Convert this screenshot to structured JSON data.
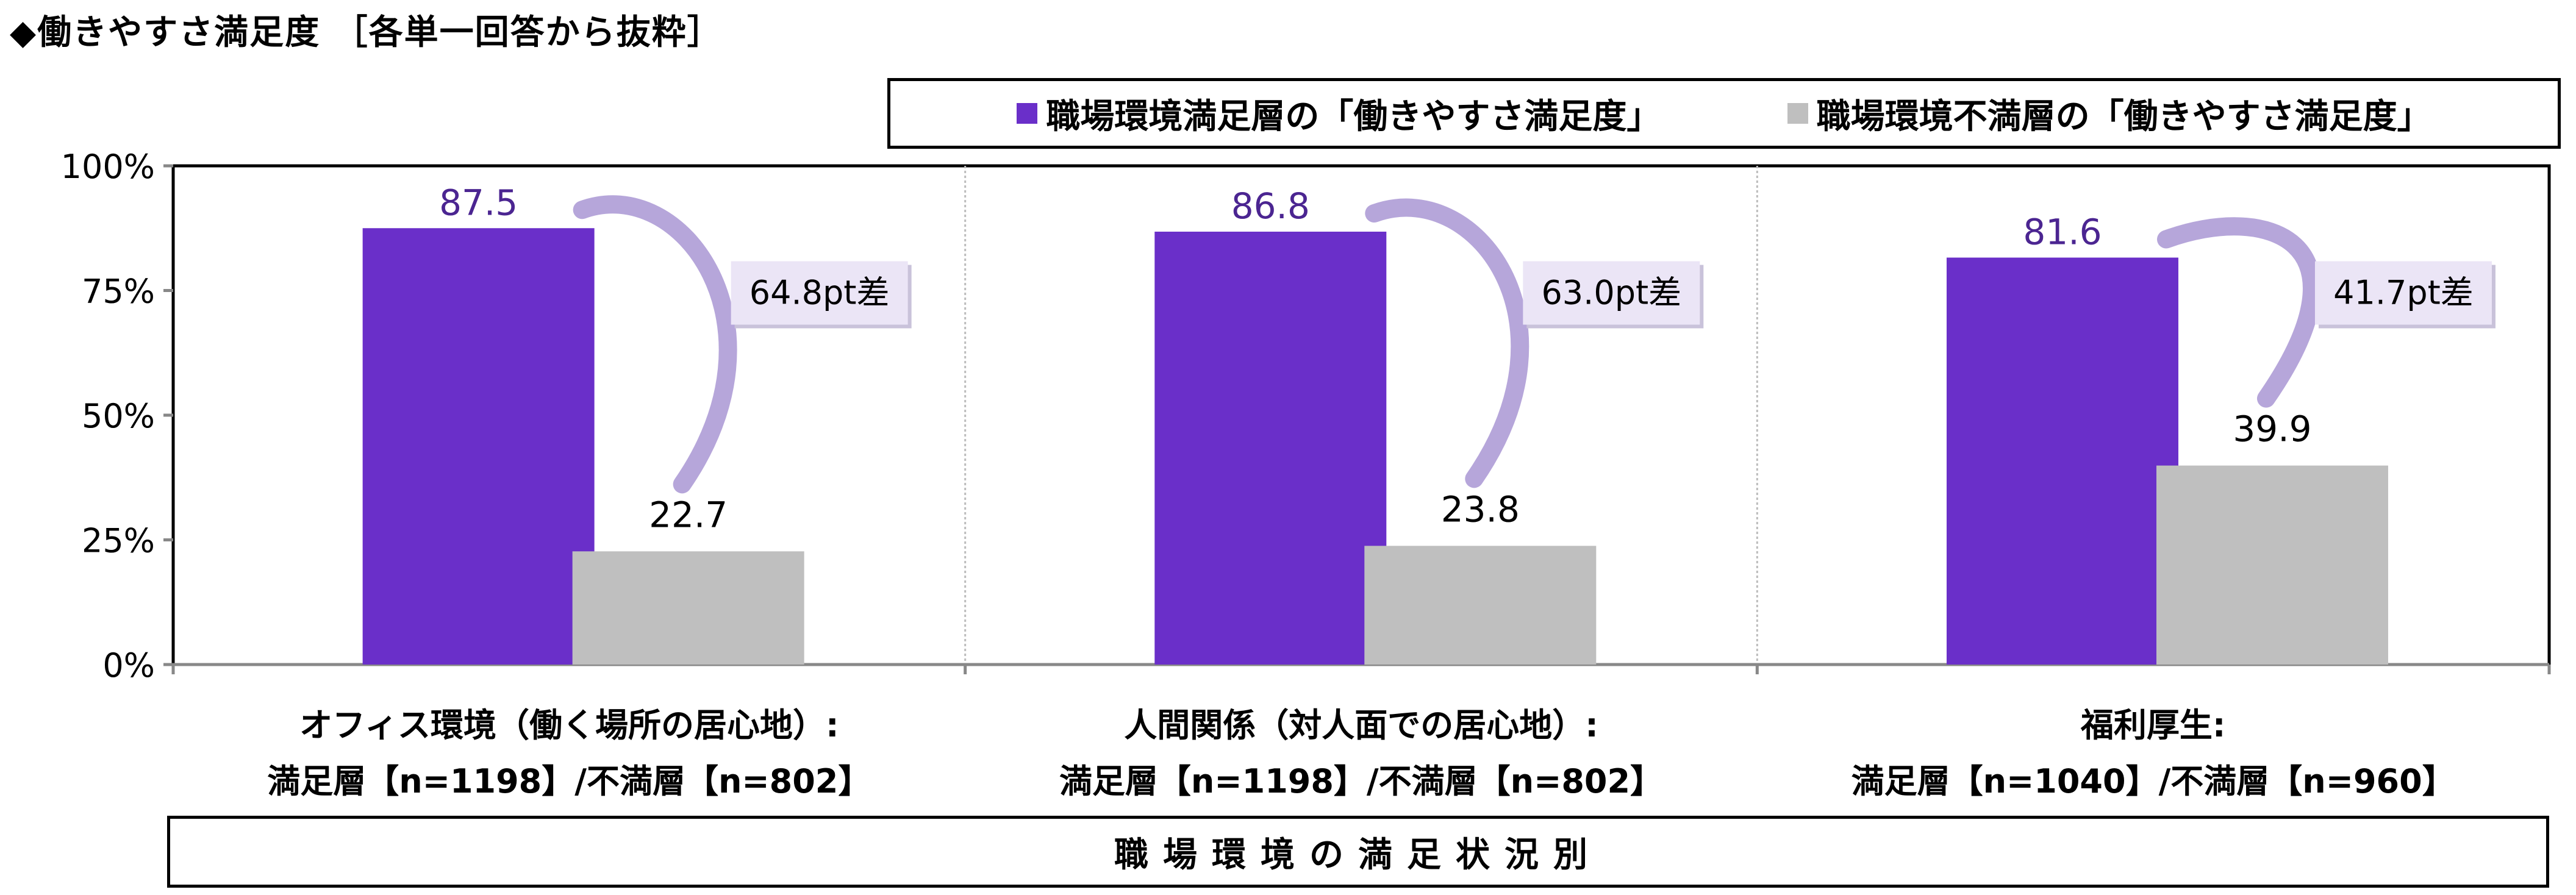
{
  "title": "◆働きやすさ満足度 ［各単一回答から抜粋］",
  "xaxis_title": "職場環境の満足状況別",
  "colors": {
    "satisfied": "#6a2fc9",
    "dissatisfied": "#bfbfbf",
    "arrow": "#b6a6da",
    "diff_box": "#ebe5f6",
    "value_purple": "#4b2591"
  },
  "chart_data": {
    "type": "bar",
    "categories": [
      [
        "オフィス環境（働く場所の居心地）:",
        "満足層【n=1198】/不満層【n=802】"
      ],
      [
        "人間関係（対人面での居心地）:",
        "満足層【n=1198】/不満層【n=802】"
      ],
      [
        "福利厚生:",
        "満足層【n=1040】/不満層【n=960】"
      ]
    ],
    "series": [
      {
        "name": "職場環境満足層の「働きやすさ満足度」",
        "values": [
          87.5,
          86.8,
          81.6
        ]
      },
      {
        "name": "職場環境不満層の「働きやすさ満足度」",
        "values": [
          22.7,
          23.8,
          39.9
        ]
      }
    ],
    "value_labels": [
      [
        "87.5",
        "86.8",
        "81.6"
      ],
      [
        "22.7",
        "23.8",
        "39.9"
      ]
    ],
    "differences": [
      "64.8pt差",
      "63.0pt差",
      "41.7pt差"
    ],
    "ylim": [
      0,
      100
    ],
    "yticks": [
      0,
      25,
      50,
      75,
      100
    ],
    "ytick_labels": [
      "0%",
      "25%",
      "50%",
      "75%",
      "100%"
    ],
    "grid": "vertical category separators",
    "legend_position": "top-right"
  }
}
